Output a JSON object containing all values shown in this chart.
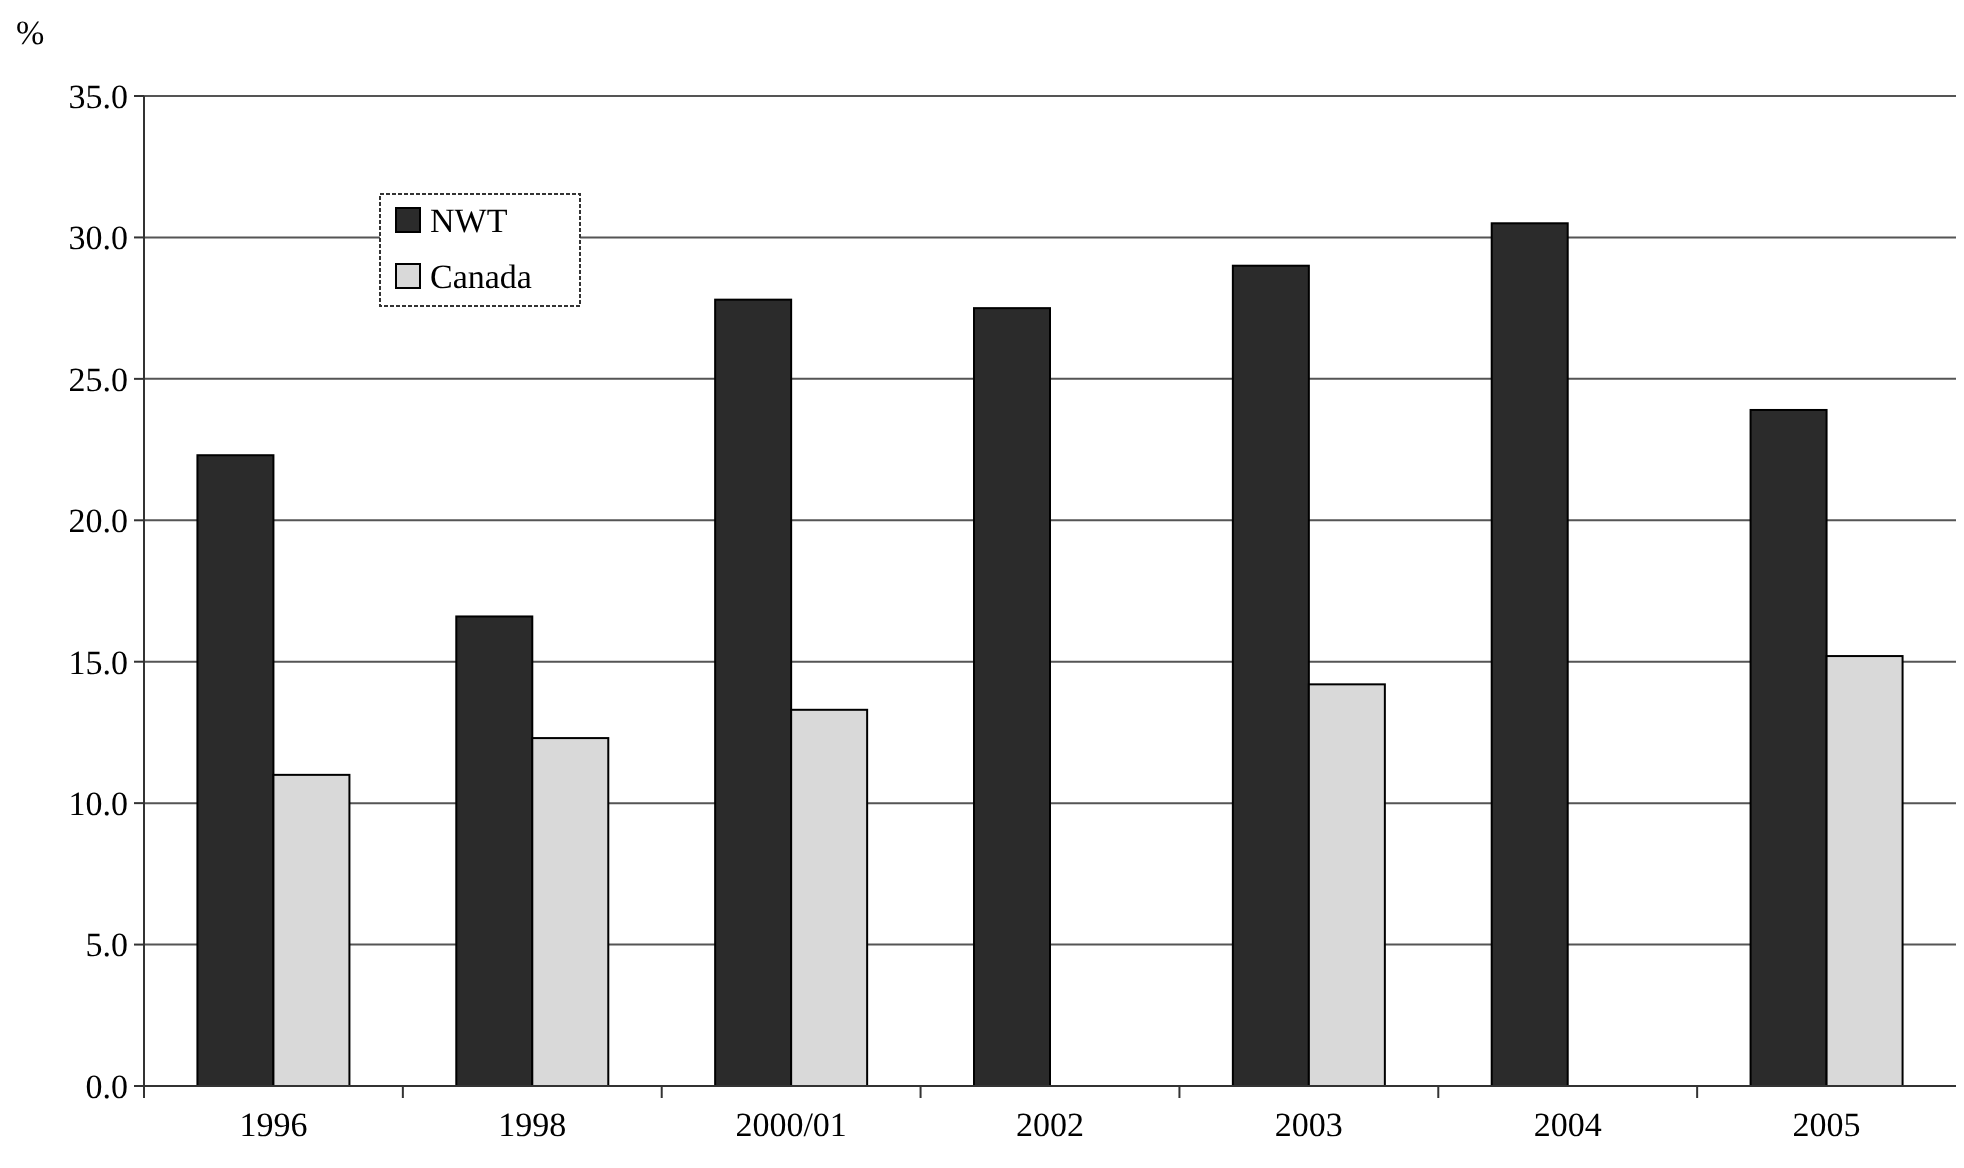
{
  "chart_data": {
    "type": "bar",
    "ylabel": "%",
    "categories": [
      "1996",
      "1998",
      "2000/01",
      "2002",
      "2003",
      "2004",
      "2005"
    ],
    "series": [
      {
        "name": "NWT",
        "color": "#2b2b2b",
        "values": [
          22.3,
          16.6,
          27.8,
          27.5,
          29.0,
          30.5,
          23.9
        ]
      },
      {
        "name": "Canada",
        "color": "#d9d9d9",
        "values": [
          11.0,
          12.3,
          13.3,
          null,
          14.2,
          null,
          15.2
        ]
      }
    ],
    "ylim": [
      0,
      35
    ],
    "yticks": [
      {
        "value": 0,
        "label": "0.0"
      },
      {
        "value": 5,
        "label": "5.0"
      },
      {
        "value": 10,
        "label": "10.0"
      },
      {
        "value": 15,
        "label": "15.0"
      },
      {
        "value": 20,
        "label": "20.0"
      },
      {
        "value": 25,
        "label": "25.0"
      },
      {
        "value": 30,
        "label": "30.0"
      },
      {
        "value": 35,
        "label": "35.0"
      }
    ],
    "grid": "y",
    "legend": "top left"
  }
}
